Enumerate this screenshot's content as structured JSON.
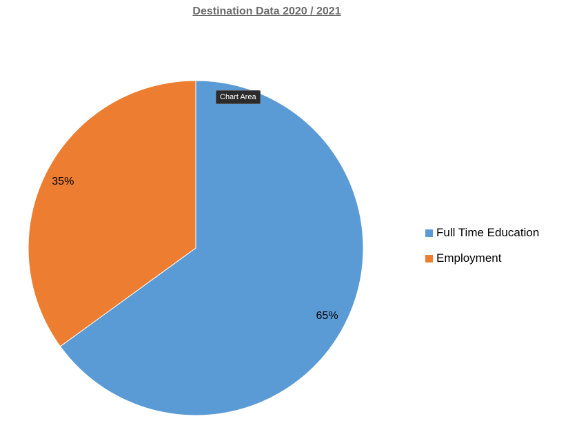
{
  "chart_data": {
    "type": "pie",
    "title": "Destination Data 2020 / 2021",
    "categories": [
      "Full Time Education",
      "Employment"
    ],
    "values": [
      65,
      35
    ],
    "data_labels": [
      "65%",
      "35%"
    ],
    "colors": [
      "#5b9bd5",
      "#ed7d31"
    ],
    "legend_position": "right",
    "start_angle_deg": 0,
    "direction": "clockwise"
  },
  "tooltip": {
    "text": "Chart Area"
  }
}
